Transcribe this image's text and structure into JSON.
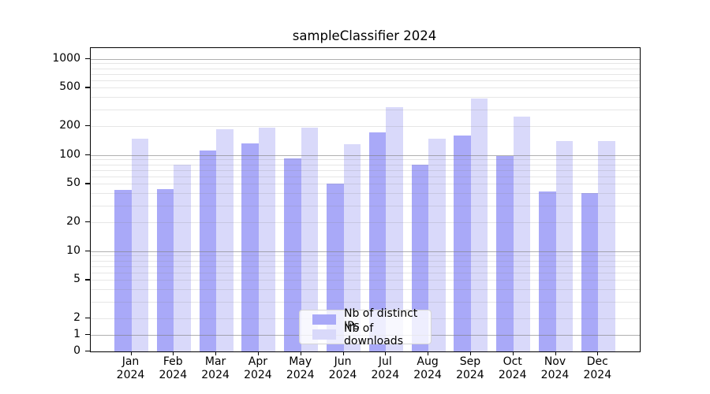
{
  "chart_data": {
    "type": "bar",
    "title": "sampleClassifier 2024",
    "categories": [
      "Jan",
      "Feb",
      "Mar",
      "Apr",
      "May",
      "Jun",
      "Jul",
      "Aug",
      "Sep",
      "Oct",
      "Nov",
      "Dec"
    ],
    "x_tick_second_line": "2024",
    "series": [
      {
        "name": "Nb of distinct IPs",
        "color": "#a9a9f8",
        "values": [
          43,
          44,
          111,
          131,
          92,
          50,
          173,
          80,
          159,
          97,
          42,
          40
        ]
      },
      {
        "name": "Nb of downloads",
        "color": "#d9d9fa",
        "values": [
          148,
          79,
          185,
          194,
          194,
          130,
          315,
          148,
          387,
          251,
          139,
          141
        ]
      }
    ],
    "yscale": "symlog",
    "ylim": [
      0,
      1300
    ],
    "yticks_labeled": [
      0,
      1,
      2,
      5,
      10,
      20,
      50,
      100,
      200,
      500,
      1000
    ],
    "yticks_major_grid": [
      1,
      10,
      100,
      1000
    ],
    "yticks_minor_grid": [
      2,
      3,
      4,
      5,
      6,
      7,
      8,
      9,
      20,
      30,
      40,
      50,
      60,
      70,
      80,
      90,
      200,
      300,
      400,
      500,
      600,
      700,
      800,
      900
    ],
    "grid": true,
    "legend": {
      "position": "lower center"
    }
  }
}
